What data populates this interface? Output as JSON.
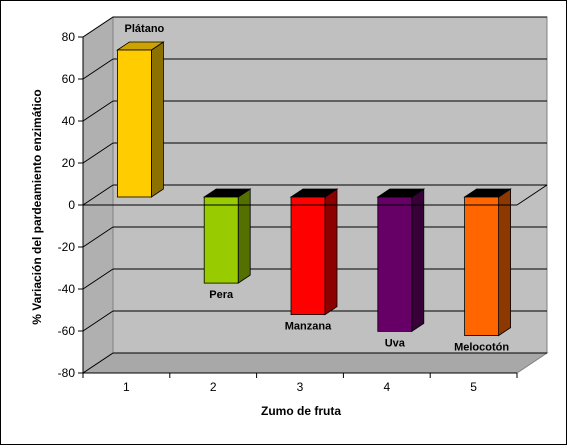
{
  "chart_data": {
    "type": "bar",
    "categories": [
      "1",
      "2",
      "3",
      "4",
      "5"
    ],
    "values": [
      70,
      -41,
      -56,
      -64,
      -66
    ],
    "data_labels": [
      "Plátano",
      "Pera",
      "Manzana",
      "Uva",
      "Melocotón"
    ],
    "colors": [
      "#ffcc00",
      "#99cc00",
      "#ff0000",
      "#660066",
      "#ff6600"
    ],
    "xlabel": "Zumo de fruta",
    "ylabel": "% Variación del pardeamiento enzimático",
    "ylim": [
      -80,
      80
    ],
    "yticks": [
      -80,
      -60,
      -40,
      -20,
      0,
      20,
      40,
      60,
      80
    ],
    "grid": true,
    "style": "3d-column"
  }
}
